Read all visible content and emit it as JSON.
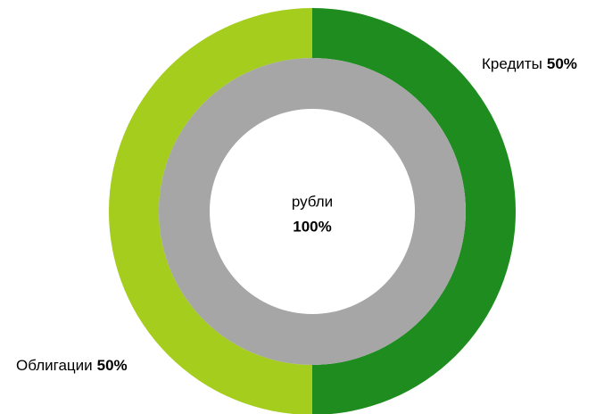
{
  "chart_data": {
    "type": "donut",
    "rings": [
      {
        "categories": [
          "Кредиты",
          "Облигации"
        ],
        "values": [
          50,
          50
        ],
        "value_labels": [
          "50%",
          "50%"
        ],
        "colors": [
          "#1e8c1e",
          "#a5cd1e"
        ]
      },
      {
        "categories": [
          "рубли"
        ],
        "values": [
          100
        ],
        "value_labels": [
          "100%"
        ],
        "colors": [
          "#a6a6a6"
        ]
      }
    ]
  }
}
